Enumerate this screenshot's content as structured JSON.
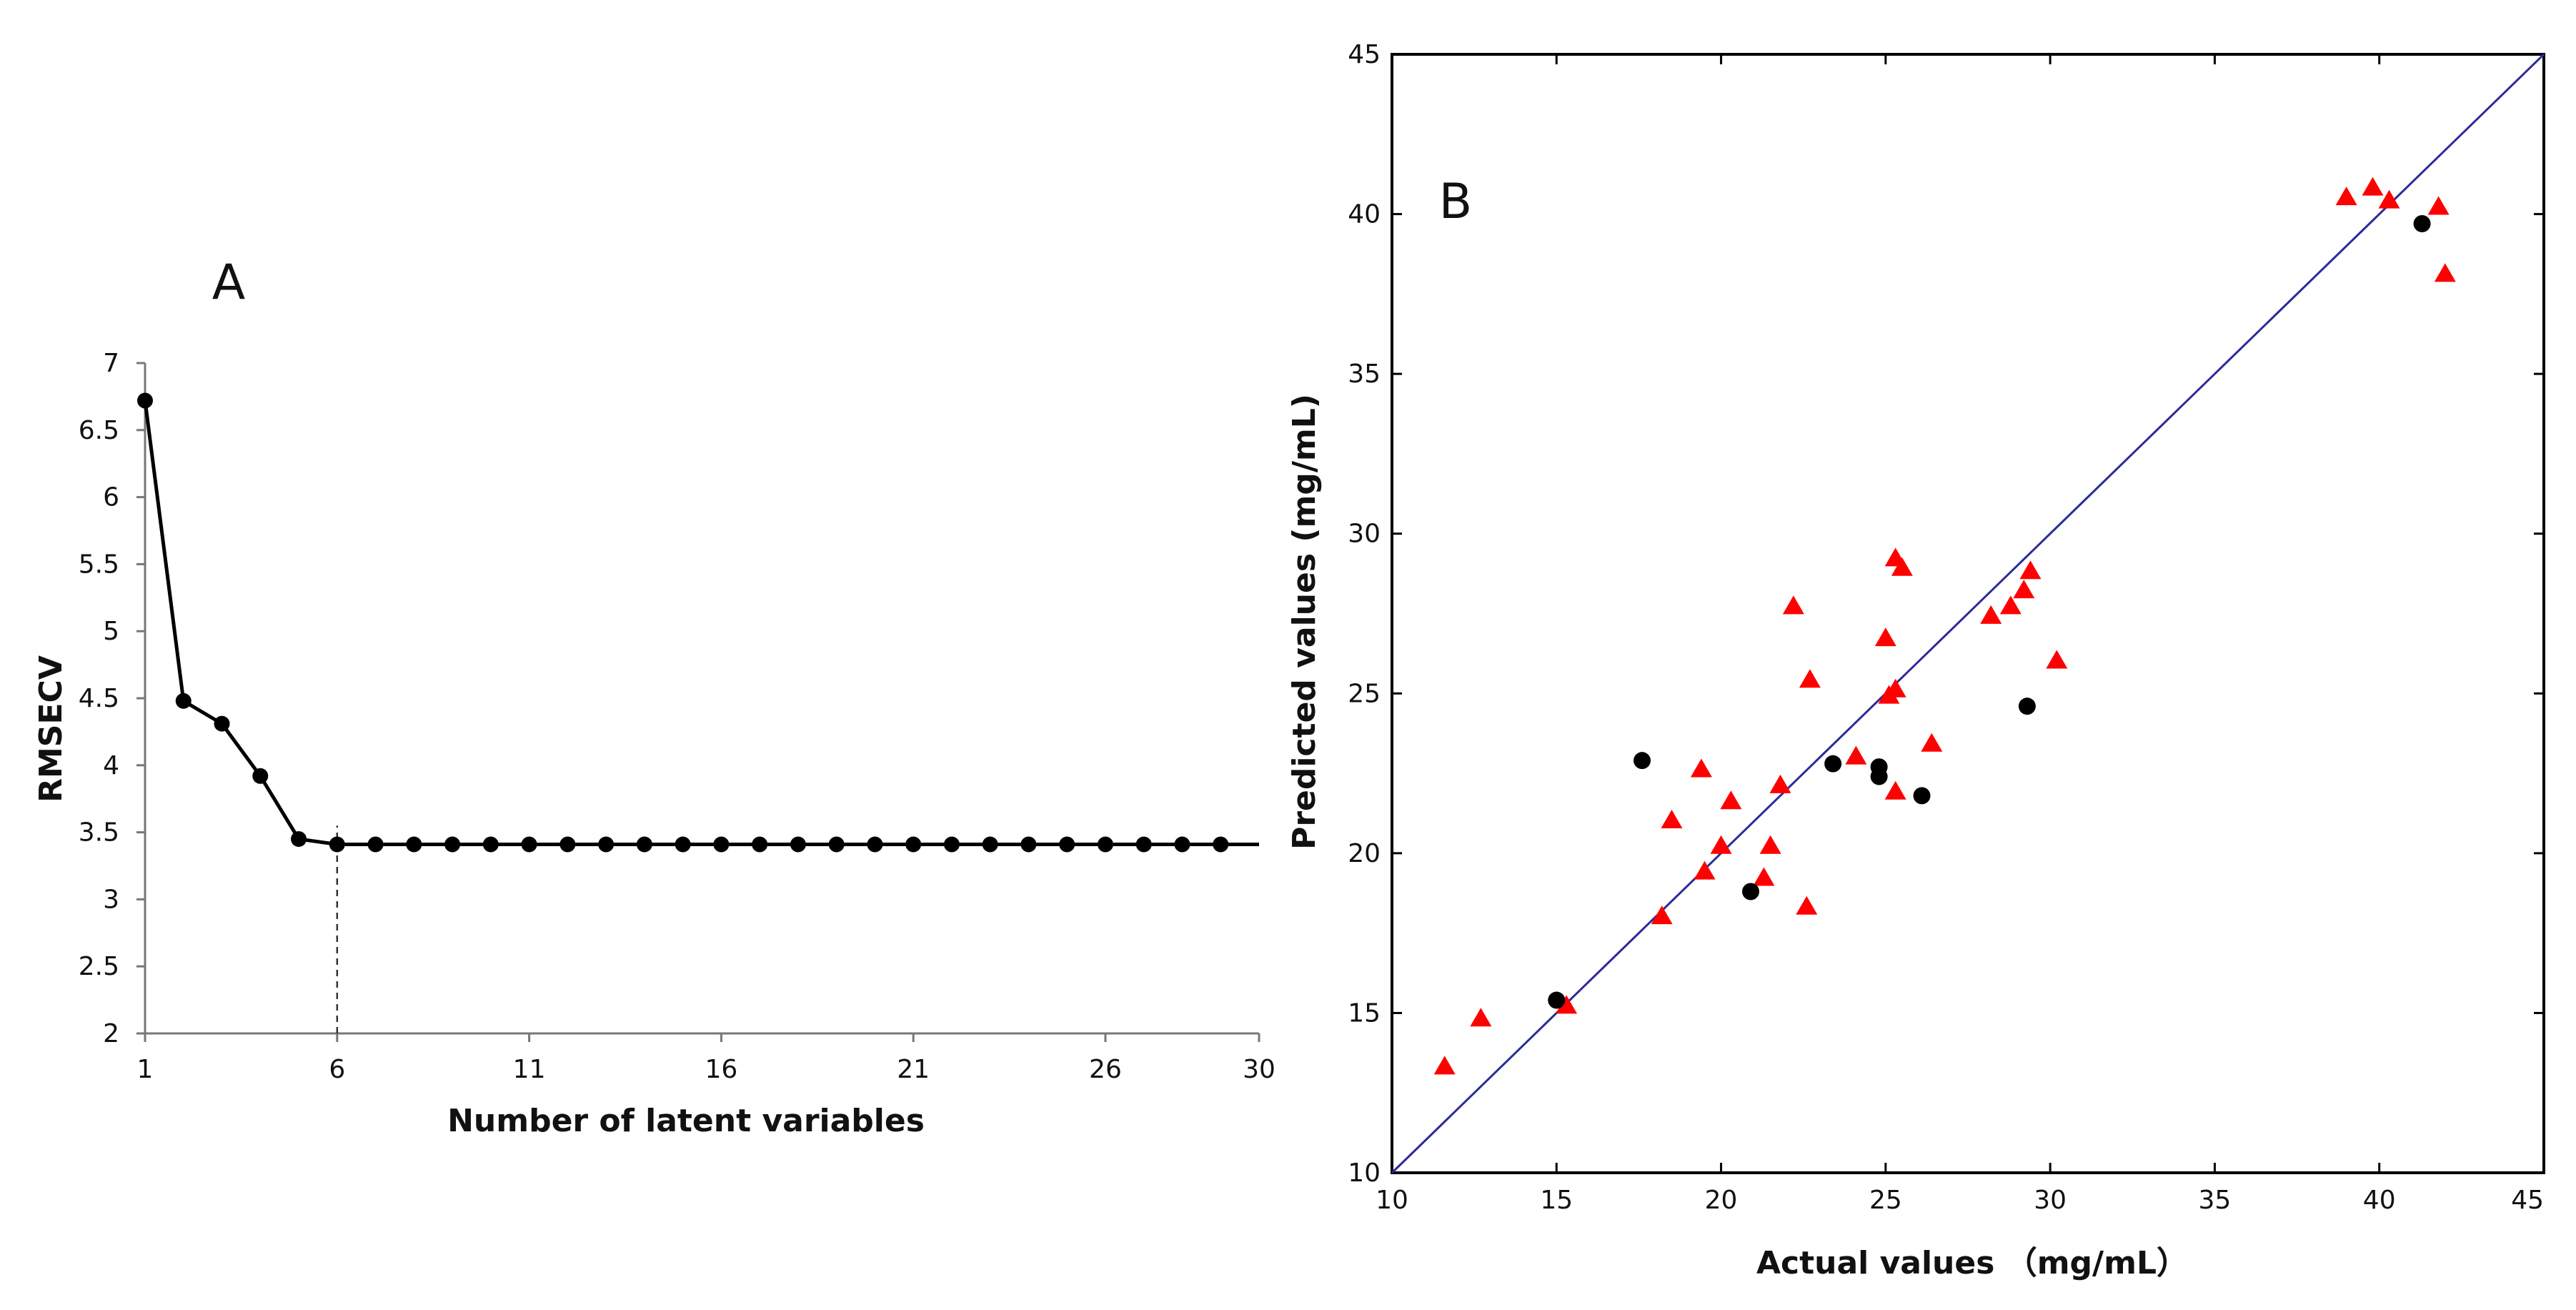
{
  "figure": {
    "panel_a_letter": "A",
    "panel_b_letter": "B"
  },
  "colors": {
    "line_a": "#000000",
    "marker_a": "#000000",
    "identity_line_b": "#2b2b99",
    "triangle_b": "#ff0000",
    "circle_b": "#000000",
    "axis": "#000000"
  },
  "chart_data": [
    {
      "id": "A",
      "type": "line",
      "title": "A",
      "xlabel": "Number of  latent variables",
      "ylabel": "RMSECV",
      "xlim": [
        1,
        30
      ],
      "ylim": [
        2,
        7
      ],
      "xticks": [
        1,
        6,
        11,
        16,
        21,
        26,
        30
      ],
      "xtick_labels": [
        "1",
        "6",
        "11",
        "16",
        "21",
        "26",
        "30"
      ],
      "yticks": [
        2,
        2.5,
        3,
        3.5,
        4,
        4.5,
        5,
        5.5,
        6,
        6.5,
        7
      ],
      "ytick_labels": [
        "2",
        "2.5",
        "3",
        "3.5",
        "4",
        "4.5",
        "5",
        "5.5",
        "6",
        "6.5",
        "7"
      ],
      "grid": false,
      "marker_reference": {
        "x": 6,
        "y_from": 2,
        "y_to": 3.55,
        "style": "dashed"
      },
      "series": [
        {
          "name": "RMSECV",
          "x": [
            1,
            2,
            3,
            4,
            5,
            6,
            7,
            8,
            9,
            10,
            11,
            12,
            13,
            14,
            15,
            16,
            17,
            18,
            19,
            20,
            21,
            22,
            23,
            24,
            25,
            26,
            27,
            28,
            29
          ],
          "y": [
            6.72,
            4.48,
            4.31,
            3.92,
            3.45,
            3.41,
            3.41,
            3.41,
            3.41,
            3.41,
            3.41,
            3.41,
            3.41,
            3.41,
            3.41,
            3.41,
            3.41,
            3.41,
            3.41,
            3.41,
            3.41,
            3.41,
            3.41,
            3.41,
            3.41,
            3.41,
            3.41,
            3.41,
            3.41
          ],
          "line_extends_to": 30
        }
      ]
    },
    {
      "id": "B",
      "type": "scatter",
      "title": "B",
      "xlabel": "Actual values （mg/mL）",
      "ylabel": "Predicted values (mg/mL)",
      "xlim": [
        10,
        45
      ],
      "ylim": [
        10,
        45
      ],
      "xticks": [
        10,
        15,
        20,
        25,
        30,
        35,
        40,
        45
      ],
      "xtick_labels": [
        "10",
        "15",
        "20",
        "25",
        "30",
        "35",
        "40",
        "45"
      ],
      "yticks": [
        10,
        15,
        20,
        25,
        30,
        35,
        40,
        45
      ],
      "ytick_labels": [
        "10",
        "15",
        "20",
        "25",
        "30",
        "35",
        "40",
        "45"
      ],
      "grid": false,
      "identity_line": {
        "from": [
          10,
          10
        ],
        "to": [
          45,
          45
        ]
      },
      "series": [
        {
          "name": "triangles",
          "marker": "triangle",
          "x": [
            11.6,
            12.7,
            15.3,
            18.2,
            18.5,
            19.4,
            19.5,
            20.0,
            20.3,
            21.3,
            21.5,
            21.8,
            22.2,
            22.6,
            22.7,
            24.1,
            25.0,
            25.1,
            25.3,
            25.3,
            25.3,
            25.5,
            26.4,
            28.2,
            28.8,
            29.2,
            29.4,
            30.2,
            39.0,
            39.8,
            40.3,
            41.8,
            42.0
          ],
          "y": [
            13.3,
            14.8,
            15.2,
            18.0,
            21.0,
            22.6,
            19.4,
            20.2,
            21.6,
            19.2,
            20.2,
            22.1,
            27.7,
            18.3,
            25.4,
            23.0,
            26.7,
            24.9,
            25.1,
            29.2,
            21.9,
            28.9,
            23.4,
            27.4,
            27.7,
            28.2,
            28.8,
            26.0,
            40.5,
            40.8,
            40.4,
            40.2,
            38.1
          ]
        },
        {
          "name": "circles",
          "marker": "circle",
          "x": [
            15.0,
            17.6,
            20.9,
            23.4,
            24.8,
            24.8,
            26.1,
            29.3,
            41.3
          ],
          "y": [
            15.4,
            22.9,
            18.8,
            22.8,
            22.4,
            22.7,
            21.8,
            24.6,
            39.7
          ]
        }
      ]
    }
  ]
}
